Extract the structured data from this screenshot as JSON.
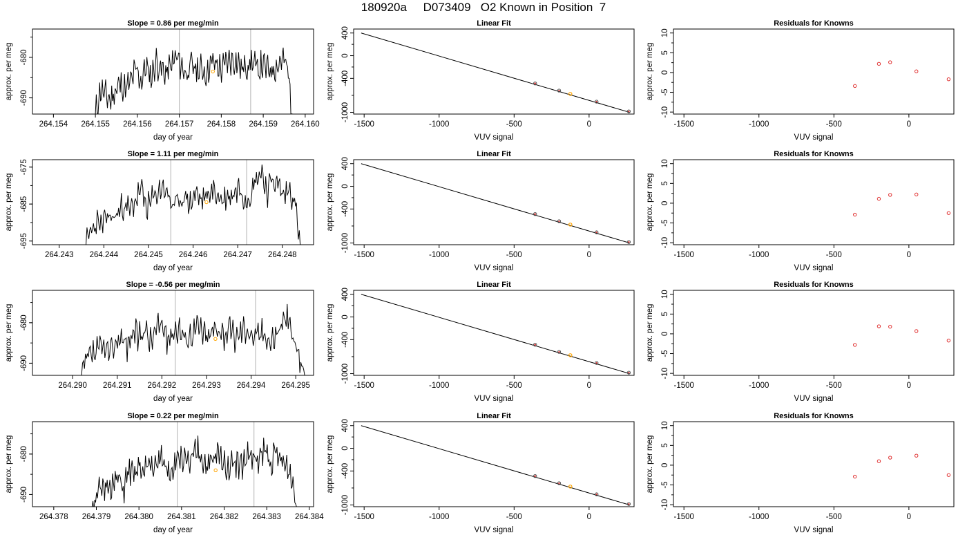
{
  "main_title": "180920a     D073409   O2 Known in Position  7",
  "colors": {
    "trace": "#000000",
    "marker_lines": "#bebebe",
    "highlight": "#ffa500",
    "residual": "#e03030",
    "fit_line": "#000000"
  },
  "chart_data": [
    {
      "type": "line",
      "panel": "time-series-1",
      "title": "Slope =  0.86  per meg/min",
      "xlabel": "day of year",
      "ylabel": "approx. per meg",
      "xlim": [
        264.1535,
        264.1602
      ],
      "ylim": [
        -694,
        -673
      ],
      "y_reversed": true,
      "xticks": [
        "264.154",
        "264.155",
        "264.156",
        "264.157",
        "264.158",
        "264.159",
        "264.160"
      ],
      "yticks": [
        "-680",
        "-690"
      ],
      "vlines": [
        264.157,
        264.1587
      ],
      "highlight": {
        "x": 264.1578,
        "y": -683.5
      },
      "series": [
        {
          "x_start": 264.155,
          "x_end": 264.1597,
          "seed": 11,
          "y": [
            -694,
            -688,
            -689.5,
            -690.5,
            -688,
            -686.5,
            -688,
            -686,
            -683,
            -686,
            -682,
            -685,
            -681,
            -683,
            -684,
            -682,
            -680,
            -682,
            -684,
            -682,
            -683,
            -683,
            -684,
            -681,
            -682,
            -683,
            -681,
            -680.5,
            -681,
            -683,
            -682,
            -681,
            -683,
            -682,
            -683,
            -683,
            -682,
            -680,
            -683,
            -694
          ]
        }
      ]
    },
    {
      "type": "scatter",
      "panel": "linear-fit-1",
      "title": "Linear Fit",
      "xlabel": "VUV signal",
      "ylabel": "approx. per meg",
      "xlim": [
        -1570,
        300
      ],
      "ylim": [
        -1030,
        470
      ],
      "xticks": [
        -1500,
        -1000,
        -500,
        0
      ],
      "yticks": [
        400,
        0,
        -400,
        -1000
      ],
      "line": {
        "x": [
          -1520,
          270
        ],
        "y": [
          400,
          -1000
        ]
      },
      "points": [
        {
          "x": -360,
          "y": -490
        },
        {
          "x": -200,
          "y": -616
        },
        {
          "x": 50,
          "y": -811
        },
        {
          "x": 265,
          "y": -983
        }
      ],
      "highlight": {
        "x": -125,
        "y": -675
      }
    },
    {
      "type": "scatter",
      "panel": "residuals-1",
      "title": "Residuals for Knowns",
      "xlabel": "VUV signal",
      "ylabel": "approx. per meg",
      "xlim": [
        -1570,
        300
      ],
      "ylim": [
        -10.5,
        11
      ],
      "xticks": [
        -1500,
        -1000,
        -500,
        0
      ],
      "yticks": [
        10,
        5,
        0,
        -5,
        -10
      ],
      "points": [
        {
          "x": -360,
          "y": -3.4
        },
        {
          "x": -200,
          "y": 2.2
        },
        {
          "x": -125,
          "y": 2.6
        },
        {
          "x": 50,
          "y": 0.3
        },
        {
          "x": 265,
          "y": -1.7
        }
      ]
    },
    {
      "type": "line",
      "panel": "time-series-2",
      "title": "Slope =  1.11  per meg/min",
      "xlabel": "day of year",
      "ylabel": "approx. per meg",
      "xlim": [
        264.2424,
        264.2487
      ],
      "ylim": [
        -696,
        -673
      ],
      "y_reversed": true,
      "xticks": [
        "264.243",
        "264.244",
        "264.245",
        "264.246",
        "264.247",
        "264.248"
      ],
      "yticks": [
        "-675",
        "-685",
        "-695"
      ],
      "vlines": [
        264.2455,
        264.2472
      ],
      "highlight": {
        "x": 264.2463,
        "y": -684.5
      },
      "series": [
        {
          "x_start": 264.2436,
          "x_end": 264.2484,
          "seed": 23,
          "y": [
            -696,
            -692,
            -690,
            -691,
            -688,
            -689,
            -687,
            -685,
            -687,
            -684,
            -681,
            -686,
            -684,
            -682,
            -680,
            -683,
            -686,
            -684,
            -683,
            -685,
            -682,
            -684,
            -683,
            -681,
            -683,
            -684,
            -683,
            -682,
            -680,
            -684,
            -682,
            -678,
            -676,
            -682,
            -678,
            -680,
            -683,
            -681,
            -684,
            -696
          ]
        }
      ]
    },
    {
      "type": "scatter",
      "panel": "linear-fit-2",
      "title": "Linear Fit",
      "xlabel": "VUV signal",
      "ylabel": "approx. per meg",
      "xlim": [
        -1570,
        300
      ],
      "ylim": [
        -1030,
        470
      ],
      "xticks": [
        -1500,
        -1000,
        -500,
        0
      ],
      "yticks": [
        400,
        0,
        -400,
        -1000
      ],
      "line": {
        "x": [
          -1520,
          270
        ],
        "y": [
          400,
          -1000
        ]
      },
      "points": [
        {
          "x": -360,
          "y": -490
        },
        {
          "x": -200,
          "y": -616
        },
        {
          "x": 50,
          "y": -811
        },
        {
          "x": 265,
          "y": -983
        }
      ],
      "highlight": {
        "x": -125,
        "y": -675
      }
    },
    {
      "type": "scatter",
      "panel": "residuals-2",
      "title": "Residuals for Knowns",
      "xlabel": "VUV signal",
      "ylabel": "approx. per meg",
      "xlim": [
        -1570,
        300
      ],
      "ylim": [
        -10.5,
        11
      ],
      "xticks": [
        -1500,
        -1000,
        -500,
        0
      ],
      "yticks": [
        10,
        5,
        0,
        -5,
        -10
      ],
      "points": [
        {
          "x": -360,
          "y": -2.9
        },
        {
          "x": -200,
          "y": 1.1
        },
        {
          "x": -125,
          "y": 2.1
        },
        {
          "x": 50,
          "y": 2.2
        },
        {
          "x": 265,
          "y": -2.5
        }
      ]
    },
    {
      "type": "line",
      "panel": "time-series-3",
      "title": "Slope =  -0.56  per meg/min",
      "xlabel": "day of year",
      "ylabel": "approx. per meg",
      "xlim": [
        264.2891,
        264.2954
      ],
      "ylim": [
        -693,
        -672
      ],
      "y_reversed": true,
      "xticks": [
        "264.290",
        "264.291",
        "264.292",
        "264.293",
        "264.294",
        "264.295"
      ],
      "yticks": [
        "-680",
        "-690"
      ],
      "vlines": [
        264.2923,
        264.2941
      ],
      "highlight": {
        "x": 264.2932,
        "y": -684
      },
      "series": [
        {
          "x_start": 264.2902,
          "x_end": 264.2952,
          "seed": 37,
          "y": [
            -693,
            -689,
            -688,
            -687,
            -686,
            -688,
            -685,
            -683,
            -686,
            -682,
            -684,
            -681,
            -685,
            -682,
            -680,
            -684,
            -682,
            -681,
            -684,
            -683,
            -681,
            -682,
            -684,
            -682,
            -681,
            -683,
            -682,
            -684,
            -682,
            -681,
            -684,
            -683,
            -682,
            -685,
            -683,
            -680,
            -679,
            -684,
            -688,
            -693
          ]
        }
      ]
    },
    {
      "type": "scatter",
      "panel": "linear-fit-3",
      "title": "Linear Fit",
      "xlabel": "VUV signal",
      "ylabel": "approx. per meg",
      "xlim": [
        -1570,
        300
      ],
      "ylim": [
        -1030,
        470
      ],
      "xticks": [
        -1500,
        -1000,
        -500,
        0
      ],
      "yticks": [
        400,
        0,
        -400,
        -1000
      ],
      "line": {
        "x": [
          -1520,
          270
        ],
        "y": [
          400,
          -1000
        ]
      },
      "points": [
        {
          "x": -360,
          "y": -490
        },
        {
          "x": -200,
          "y": -616
        },
        {
          "x": 50,
          "y": -811
        },
        {
          "x": 265,
          "y": -983
        }
      ],
      "highlight": {
        "x": -125,
        "y": -675
      }
    },
    {
      "type": "scatter",
      "panel": "residuals-3",
      "title": "Residuals for Knowns",
      "xlabel": "VUV signal",
      "ylabel": "approx. per meg",
      "xlim": [
        -1570,
        300
      ],
      "ylim": [
        -10.5,
        11
      ],
      "xticks": [
        -1500,
        -1000,
        -500,
        0
      ],
      "yticks": [
        10,
        5,
        0,
        -5,
        -10
      ],
      "points": [
        {
          "x": -360,
          "y": -2.8
        },
        {
          "x": -200,
          "y": 1.9
        },
        {
          "x": -125,
          "y": 1.8
        },
        {
          "x": 50,
          "y": 0.7
        },
        {
          "x": 265,
          "y": -1.7
        }
      ]
    },
    {
      "type": "line",
      "panel": "time-series-4",
      "title": "Slope =  0.22  per meg/min",
      "xlabel": "day of year",
      "ylabel": "approx. per meg",
      "xlim": [
        264.3775,
        264.3841
      ],
      "ylim": [
        -693,
        -672
      ],
      "y_reversed": true,
      "xticks": [
        "264.378",
        "264.379",
        "264.380",
        "264.381",
        "264.382",
        "264.383",
        "264.384"
      ],
      "yticks": [
        "-680",
        "-690"
      ],
      "vlines": [
        264.3809,
        264.3827
      ],
      "highlight": {
        "x": 264.3818,
        "y": -684
      },
      "series": [
        {
          "x_start": 264.3789,
          "x_end": 264.3837,
          "seed": 51,
          "y": [
            -693,
            -689,
            -690,
            -687,
            -688,
            -686,
            -689,
            -684,
            -686,
            -683,
            -685,
            -682,
            -684,
            -681,
            -683,
            -684,
            -682,
            -680,
            -683,
            -682,
            -679,
            -681,
            -683,
            -682,
            -680,
            -682,
            -683,
            -681,
            -683,
            -682,
            -680,
            -682,
            -681,
            -679,
            -682,
            -680,
            -682,
            -683,
            -685,
            -693
          ]
        }
      ]
    },
    {
      "type": "scatter",
      "panel": "linear-fit-4",
      "title": "Linear Fit",
      "xlabel": "VUV signal",
      "ylabel": "approx. per meg",
      "xlim": [
        -1570,
        300
      ],
      "ylim": [
        -1030,
        470
      ],
      "xticks": [
        -1500,
        -1000,
        -500,
        0
      ],
      "yticks": [
        400,
        0,
        -400,
        -1000
      ],
      "line": {
        "x": [
          -1520,
          270
        ],
        "y": [
          400,
          -1000
        ]
      },
      "points": [
        {
          "x": -360,
          "y": -490
        },
        {
          "x": -200,
          "y": -616
        },
        {
          "x": 50,
          "y": -811
        },
        {
          "x": 265,
          "y": -983
        }
      ],
      "highlight": {
        "x": -125,
        "y": -675
      }
    },
    {
      "type": "scatter",
      "panel": "residuals-4",
      "title": "Residuals for Knowns",
      "xlabel": "VUV signal",
      "ylabel": "approx. per meg",
      "xlim": [
        -1570,
        300
      ],
      "ylim": [
        -10.5,
        11
      ],
      "xticks": [
        -1500,
        -1000,
        -500,
        0
      ],
      "yticks": [
        10,
        5,
        0,
        -5,
        -10
      ],
      "points": [
        {
          "x": -360,
          "y": -2.9
        },
        {
          "x": -200,
          "y": 1.0
        },
        {
          "x": -125,
          "y": 1.9
        },
        {
          "x": 50,
          "y": 2.4
        },
        {
          "x": 265,
          "y": -2.5
        }
      ]
    }
  ]
}
